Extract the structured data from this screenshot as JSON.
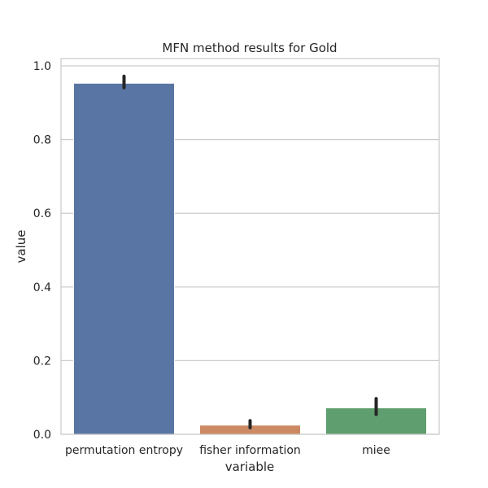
{
  "chart_data": {
    "type": "bar",
    "title": "MFN method results for Gold",
    "xlabel": "variable",
    "ylabel": "value",
    "categories": [
      "permutation entropy",
      "fisher information",
      "miee"
    ],
    "values": [
      0.953,
      0.025,
      0.072
    ],
    "error_low": [
      0.941,
      0.018,
      0.054
    ],
    "error_high": [
      0.972,
      0.037,
      0.097
    ],
    "ylim": [
      0,
      1.02
    ],
    "yticks": [
      0.0,
      0.2,
      0.4,
      0.6,
      0.8,
      1.0
    ],
    "ytick_labels": [
      "0.0",
      "0.2",
      "0.4",
      "0.6",
      "0.8",
      "1.0"
    ],
    "colors": [
      "#5975a4",
      "#cc8963",
      "#5f9e6e"
    ],
    "grid": "horizontal",
    "error_color": "#262626"
  }
}
